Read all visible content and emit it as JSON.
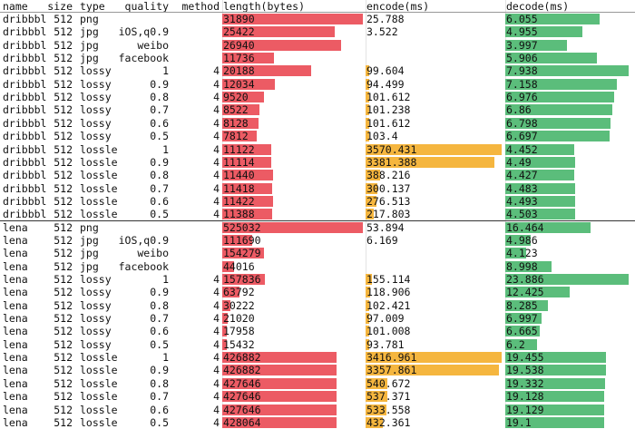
{
  "table": {
    "columns": [
      "name",
      "size",
      "type",
      "quality",
      "method",
      "length(bytes)",
      "encode(ms)",
      "decode(ms)"
    ],
    "colors": [
      "#ec5b64",
      "#f5b63f",
      "#5bbd7b"
    ],
    "rows": [
      [
        "dribbbl",
        512,
        "png",
        null,
        null,
        31890,
        25.788,
        6.055
      ],
      [
        "dribbbl",
        512,
        "jpg",
        "iOS,q0.9",
        null,
        25422,
        3.522,
        4.955
      ],
      [
        "dribbbl",
        512,
        "jpg",
        "weibo",
        null,
        26940,
        null,
        3.997
      ],
      [
        "dribbbl",
        512,
        "jpg",
        "facebook",
        null,
        11736,
        null,
        5.906
      ],
      [
        "dribbbl",
        512,
        "lossy",
        1,
        4,
        20188,
        99.604,
        7.938
      ],
      [
        "dribbbl",
        512,
        "lossy",
        0.9,
        4,
        12034,
        94.499,
        7.158
      ],
      [
        "dribbbl",
        512,
        "lossy",
        0.8,
        4,
        9520,
        101.612,
        6.976
      ],
      [
        "dribbbl",
        512,
        "lossy",
        0.7,
        4,
        8522,
        101.238,
        6.86
      ],
      [
        "dribbbl",
        512,
        "lossy",
        0.6,
        4,
        8128,
        101.612,
        6.798
      ],
      [
        "dribbbl",
        512,
        "lossy",
        0.5,
        4,
        7812,
        103.4,
        6.697
      ],
      [
        "dribbbl",
        512,
        "lossle",
        1,
        4,
        11122,
        3570.431,
        4.452
      ],
      [
        "dribbbl",
        512,
        "lossle",
        0.9,
        4,
        11114,
        3381.388,
        4.49
      ],
      [
        "dribbbl",
        512,
        "lossle",
        0.8,
        4,
        11440,
        388.216,
        4.427
      ],
      [
        "dribbbl",
        512,
        "lossle",
        0.7,
        4,
        11418,
        300.137,
        4.483
      ],
      [
        "dribbbl",
        512,
        "lossle",
        0.6,
        4,
        11422,
        276.513,
        4.493
      ],
      [
        "dribbbl",
        512,
        "lossle",
        0.5,
        4,
        11388,
        217.803,
        4.503
      ],
      [
        "lena",
        512,
        "png",
        null,
        null,
        525032,
        53.894,
        16.464
      ],
      [
        "lena",
        512,
        "jpg",
        "iOS,q0.9",
        null,
        111690,
        6.169,
        4.986
      ],
      [
        "lena",
        512,
        "jpg",
        "weibo",
        null,
        154279,
        null,
        4.123
      ],
      [
        "lena",
        512,
        "jpg",
        "facebook",
        null,
        44016,
        null,
        8.998
      ],
      [
        "lena",
        512,
        "lossy",
        1,
        4,
        157836,
        155.114,
        23.886
      ],
      [
        "lena",
        512,
        "lossy",
        0.9,
        4,
        63792,
        118.906,
        12.425
      ],
      [
        "lena",
        512,
        "lossy",
        0.8,
        4,
        30222,
        102.421,
        8.285
      ],
      [
        "lena",
        512,
        "lossy",
        0.7,
        4,
        21020,
        97.009,
        6.997
      ],
      [
        "lena",
        512,
        "lossy",
        0.6,
        4,
        17958,
        101.008,
        6.665
      ],
      [
        "lena",
        512,
        "lossy",
        0.5,
        4,
        15432,
        93.781,
        6.2
      ],
      [
        "lena",
        512,
        "lossle",
        1,
        4,
        426882,
        3416.961,
        19.455
      ],
      [
        "lena",
        512,
        "lossle",
        0.9,
        4,
        426882,
        3357.861,
        19.538
      ],
      [
        "lena",
        512,
        "lossle",
        0.8,
        4,
        427646,
        540.672,
        19.332
      ],
      [
        "lena",
        512,
        "lossle",
        0.7,
        4,
        427646,
        537.371,
        19.128
      ],
      [
        "lena",
        512,
        "lossle",
        0.6,
        4,
        427646,
        533.558,
        19.129
      ],
      [
        "lena",
        512,
        "lossle",
        0.5,
        4,
        428064,
        432.361,
        19.1
      ]
    ]
  }
}
